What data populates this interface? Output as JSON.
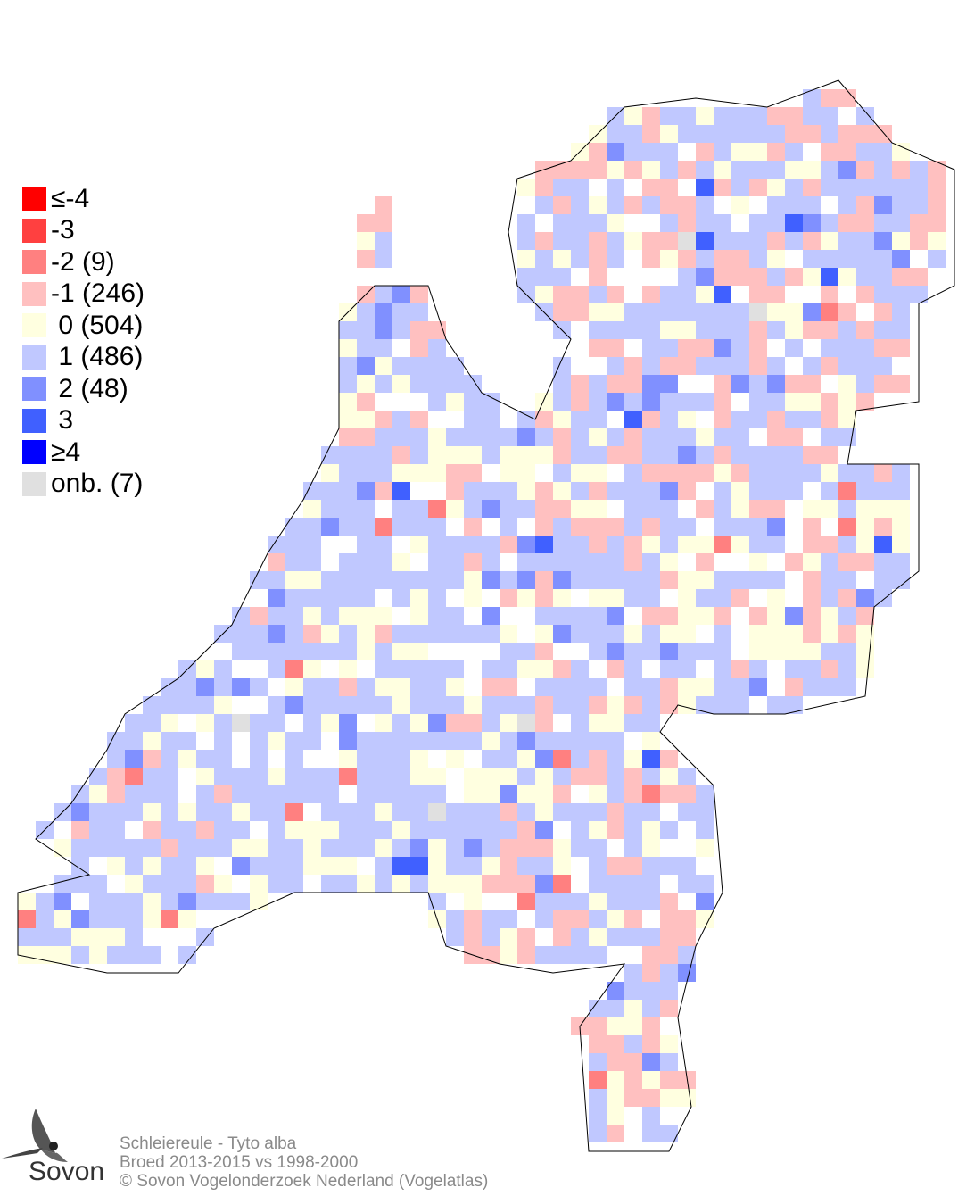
{
  "legend": {
    "items": [
      {
        "label": "≤-4",
        "color": "#ff0000"
      },
      {
        "label": "-3",
        "color": "#ff4040"
      },
      {
        "label": "-2 (9)",
        "color": "#ff8080"
      },
      {
        "label": "-1 (246)",
        "color": "#ffc0c0"
      },
      {
        "label": " 0 (504)",
        "color": "#ffffe0"
      },
      {
        "label": " 1 (486)",
        "color": "#c0c8ff"
      },
      {
        "label": " 2 (48)",
        "color": "#8090ff"
      },
      {
        "label": " 3",
        "color": "#4060ff"
      },
      {
        "label": "≥4",
        "color": "#0000ff"
      },
      {
        "label": "onb. (7)",
        "color": "#e0e0e0"
      }
    ]
  },
  "footer": {
    "species": "Schleiereule - Tyto alba",
    "period": "Broed 2013-2015 vs 1998-2000",
    "copyright": "© Sovon Vogelonderzoek Nederland (Vogelatlas)"
  },
  "logo": {
    "text": "Sovon",
    "icon": "swallow-icon"
  }
}
